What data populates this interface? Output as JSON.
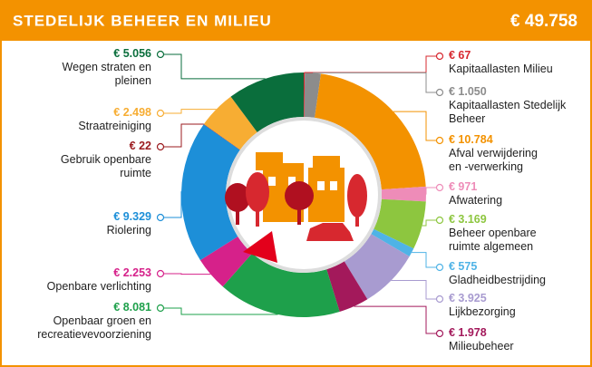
{
  "chart_data": {
    "type": "pie",
    "title": "STEDELIJK BEHEER EN MILIEU",
    "total": "€ 49.758",
    "categories": [
      "Kapitaallasten Milieu",
      "Kapitaallasten Stedelijk\nBeheer",
      "Afval verwijdering\nen -verwerking",
      "Afwatering",
      "Beheer openbare\nruimte algemeen",
      "Gladheidbestrijding",
      "Lijkbezorging",
      "Milieubeheer",
      "Openbaar groen en\nrecreatievevoorziening",
      "Openbare verlichting",
      "Riolering",
      "Gebruik openbare\nruimte",
      "Straatreiniging",
      "Wegen straten en\npleinen"
    ],
    "values": [
      67,
      1050,
      10784,
      971,
      3169,
      575,
      3925,
      1978,
      8081,
      2253,
      9329,
      22,
      2498,
      5056
    ],
    "value_labels": [
      "€ 67",
      "€ 1.050",
      "€ 10.784",
      "€ 971",
      "€ 3.169",
      "€ 575",
      "€ 3.925",
      "€ 1.978",
      "€ 8.081",
      "€ 2.253",
      "€ 9.329",
      "€ 22",
      "€ 2.498",
      "€ 5.056"
    ],
    "colors": [
      "#d7282f",
      "#8c8c8c",
      "#f39200",
      "#ee8cb8",
      "#8dc63f",
      "#4fb3e6",
      "#a89bd0",
      "#a3195b",
      "#1ea04b",
      "#d6218a",
      "#1d8fd8",
      "#9b1b1f",
      "#f7ad33",
      "#0a6e3c"
    ]
  }
}
